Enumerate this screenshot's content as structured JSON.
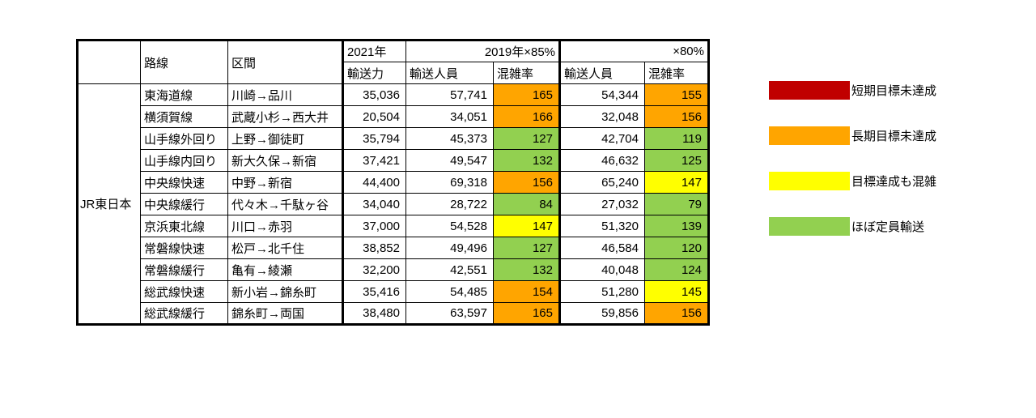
{
  "chart_data": {
    "type": "table",
    "company": "JR東日本",
    "headers": {
      "line": "路線",
      "section": "区間",
      "year2021": "2021年",
      "capacity": "輸送力",
      "y2019x85": "2019年×85%",
      "x80": "×80%",
      "passengers": "輸送人員",
      "congestion": "混雑率"
    },
    "rows": [
      {
        "line": "東海道線",
        "section": "川崎→品川",
        "capacity": "35,036",
        "p85": "57,741",
        "c85": "165",
        "c85_color": "orange",
        "p80": "54,344",
        "c80": "155",
        "c80_color": "orange"
      },
      {
        "line": "横須賀線",
        "section": "武蔵小杉→西大井",
        "capacity": "20,504",
        "p85": "34,051",
        "c85": "166",
        "c85_color": "orange",
        "p80": "32,048",
        "c80": "156",
        "c80_color": "orange"
      },
      {
        "line": "山手線外回り",
        "section": "上野→御徒町",
        "capacity": "35,794",
        "p85": "45,373",
        "c85": "127",
        "c85_color": "green",
        "p80": "42,704",
        "c80": "119",
        "c80_color": "green"
      },
      {
        "line": "山手線内回り",
        "section": "新大久保→新宿",
        "capacity": "37,421",
        "p85": "49,547",
        "c85": "132",
        "c85_color": "green",
        "p80": "46,632",
        "c80": "125",
        "c80_color": "green"
      },
      {
        "line": "中央線快速",
        "section": "中野→新宿",
        "capacity": "44,400",
        "p85": "69,318",
        "c85": "156",
        "c85_color": "orange",
        "p80": "65,240",
        "c80": "147",
        "c80_color": "yellow"
      },
      {
        "line": "中央線緩行",
        "section": "代々木→千駄ヶ谷",
        "capacity": "34,040",
        "p85": "28,722",
        "c85": "84",
        "c85_color": "green",
        "p80": "27,032",
        "c80": "79",
        "c80_color": "green"
      },
      {
        "line": "京浜東北線",
        "section": "川口→赤羽",
        "capacity": "37,000",
        "p85": "54,528",
        "c85": "147",
        "c85_color": "yellow",
        "p80": "51,320",
        "c80": "139",
        "c80_color": "green"
      },
      {
        "line": "常磐線快速",
        "section": "松戸→北千住",
        "capacity": "38,852",
        "p85": "49,496",
        "c85": "127",
        "c85_color": "green",
        "p80": "46,584",
        "c80": "120",
        "c80_color": "green"
      },
      {
        "line": "常磐線緩行",
        "section": "亀有→綾瀬",
        "capacity": "32,200",
        "p85": "42,551",
        "c85": "132",
        "c85_color": "green",
        "p80": "40,048",
        "c80": "124",
        "c80_color": "green"
      },
      {
        "line": "総武線快速",
        "section": "新小岩→錦糸町",
        "capacity": "35,416",
        "p85": "54,485",
        "c85": "154",
        "c85_color": "orange",
        "p80": "51,280",
        "c80": "145",
        "c80_color": "yellow"
      },
      {
        "line": "総武線緩行",
        "section": "錦糸町→両国",
        "capacity": "38,480",
        "p85": "63,597",
        "c85": "165",
        "c85_color": "orange",
        "p80": "59,856",
        "c80": "156",
        "c80_color": "orange"
      }
    ]
  },
  "colors": {
    "darkred": "#C00000",
    "orange": "#FFA500",
    "yellow": "#FFFF00",
    "green": "#92D050"
  },
  "legend": [
    {
      "color": "#C00000",
      "label": "短期目標未達成"
    },
    {
      "color": "#FFA500",
      "label": "長期目標未達成"
    },
    {
      "color": "#FFFF00",
      "label": "目標達成も混雑"
    },
    {
      "color": "#92D050",
      "label": "ほぼ定員輸送"
    }
  ]
}
